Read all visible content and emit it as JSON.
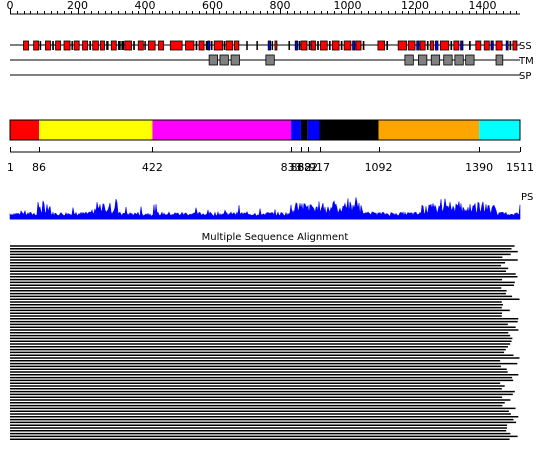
{
  "ruler": {
    "min": 0,
    "max": 1511,
    "ticks": [
      "0",
      "200",
      "400",
      "600",
      "800",
      "1000",
      "1200",
      "1400"
    ]
  },
  "tracks": {
    "ss_label": "SS",
    "tm_label": "TM",
    "sp_label": "SP",
    "ps_label": "PS"
  },
  "colors": {
    "helix": "#ff0000",
    "strand": "#0000ff",
    "coil": "#000000",
    "tm": "#808080",
    "ps": "#0000ff"
  },
  "ss_elements": [
    {
      "t": "h",
      "s": 40,
      "e": 55
    },
    {
      "t": "h",
      "s": 70,
      "e": 85
    },
    {
      "t": "c",
      "s": 88,
      "e": 92
    },
    {
      "t": "h",
      "s": 105,
      "e": 120
    },
    {
      "t": "c",
      "s": 125,
      "e": 130
    },
    {
      "t": "h",
      "s": 135,
      "e": 150
    },
    {
      "t": "h",
      "s": 160,
      "e": 178
    },
    {
      "t": "c",
      "s": 182,
      "e": 186
    },
    {
      "t": "h",
      "s": 190,
      "e": 205
    },
    {
      "t": "h",
      "s": 215,
      "e": 230
    },
    {
      "t": "c",
      "s": 235,
      "e": 240
    },
    {
      "t": "h",
      "s": 245,
      "e": 262
    },
    {
      "t": "h",
      "s": 268,
      "e": 280
    },
    {
      "t": "c",
      "s": 285,
      "e": 292
    },
    {
      "t": "h",
      "s": 300,
      "e": 315
    },
    {
      "t": "c",
      "s": 320,
      "e": 328
    },
    {
      "t": "c",
      "s": 330,
      "e": 338
    },
    {
      "t": "h",
      "s": 340,
      "e": 360
    },
    {
      "t": "c",
      "s": 365,
      "e": 370
    },
    {
      "t": "h",
      "s": 380,
      "e": 395
    },
    {
      "t": "c",
      "s": 398,
      "e": 402
    },
    {
      "t": "h",
      "s": 410,
      "e": 430
    },
    {
      "t": "h",
      "s": 440,
      "e": 455
    },
    {
      "t": "h",
      "s": 475,
      "e": 510
    },
    {
      "t": "h",
      "s": 520,
      "e": 545
    },
    {
      "t": "c",
      "s": 550,
      "e": 555
    },
    {
      "t": "h",
      "s": 560,
      "e": 575
    },
    {
      "t": "c",
      "s": 580,
      "e": 585
    },
    {
      "t": "e",
      "s": 586,
      "e": 592
    },
    {
      "t": "c",
      "s": 595,
      "e": 600
    },
    {
      "t": "h",
      "s": 605,
      "e": 630
    },
    {
      "t": "c",
      "s": 633,
      "e": 636
    },
    {
      "t": "h",
      "s": 640,
      "e": 660
    },
    {
      "t": "h",
      "s": 665,
      "e": 678
    },
    {
      "t": "c",
      "s": 700,
      "e": 704
    },
    {
      "t": "c",
      "s": 730,
      "e": 734
    },
    {
      "t": "e",
      "s": 765,
      "e": 772
    },
    {
      "t": "c",
      "s": 775,
      "e": 779
    },
    {
      "t": "h",
      "s": 785,
      "e": 790
    },
    {
      "t": "c",
      "s": 825,
      "e": 829
    },
    {
      "t": "e",
      "s": 845,
      "e": 852
    },
    {
      "t": "c",
      "s": 855,
      "e": 860
    },
    {
      "t": "h",
      "s": 862,
      "e": 880
    },
    {
      "t": "c",
      "s": 885,
      "e": 890
    },
    {
      "t": "h",
      "s": 892,
      "e": 905
    },
    {
      "t": "c",
      "s": 910,
      "e": 915
    },
    {
      "t": "h",
      "s": 920,
      "e": 940
    },
    {
      "t": "c",
      "s": 945,
      "e": 950
    },
    {
      "t": "h",
      "s": 955,
      "e": 975
    },
    {
      "t": "c",
      "s": 980,
      "e": 985
    },
    {
      "t": "h",
      "s": 990,
      "e": 1010
    },
    {
      "t": "e",
      "s": 1015,
      "e": 1022
    },
    {
      "t": "h",
      "s": 1025,
      "e": 1040
    },
    {
      "t": "c",
      "s": 1045,
      "e": 1050
    },
    {
      "t": "h",
      "s": 1090,
      "e": 1110
    },
    {
      "t": "c",
      "s": 1115,
      "e": 1120
    },
    {
      "t": "h",
      "s": 1150,
      "e": 1175
    },
    {
      "t": "h",
      "s": 1180,
      "e": 1200
    },
    {
      "t": "e",
      "s": 1205,
      "e": 1212
    },
    {
      "t": "h",
      "s": 1215,
      "e": 1230
    },
    {
      "t": "c",
      "s": 1235,
      "e": 1240
    },
    {
      "t": "h",
      "s": 1245,
      "e": 1255
    },
    {
      "t": "e",
      "s": 1260,
      "e": 1268
    },
    {
      "t": "h",
      "s": 1275,
      "e": 1300
    },
    {
      "t": "c",
      "s": 1305,
      "e": 1310
    },
    {
      "t": "h",
      "s": 1315,
      "e": 1330
    },
    {
      "t": "e",
      "s": 1335,
      "e": 1342
    },
    {
      "t": "c",
      "s": 1360,
      "e": 1365
    },
    {
      "t": "h",
      "s": 1380,
      "e": 1395
    },
    {
      "t": "h",
      "s": 1405,
      "e": 1420
    },
    {
      "t": "e",
      "s": 1425,
      "e": 1432
    },
    {
      "t": "h",
      "s": 1440,
      "e": 1458
    },
    {
      "t": "e",
      "s": 1470,
      "e": 1476
    },
    {
      "t": "c",
      "s": 1480,
      "e": 1485
    },
    {
      "t": "h",
      "s": 1490,
      "e": 1502
    }
  ],
  "tm_segments": [
    {
      "s": 590,
      "e": 615
    },
    {
      "s": 622,
      "e": 647
    },
    {
      "s": 655,
      "e": 680
    },
    {
      "s": 758,
      "e": 783
    },
    {
      "s": 1170,
      "e": 1195
    },
    {
      "s": 1210,
      "e": 1235
    },
    {
      "s": 1248,
      "e": 1273
    },
    {
      "s": 1285,
      "e": 1310
    },
    {
      "s": 1318,
      "e": 1343
    },
    {
      "s": 1350,
      "e": 1375
    },
    {
      "s": 1440,
      "e": 1460
    }
  ],
  "domains": [
    {
      "start": 1,
      "end": 86,
      "color": "#ff0000"
    },
    {
      "start": 86,
      "end": 422,
      "color": "#ffff00"
    },
    {
      "start": 422,
      "end": 833,
      "color": "#ff00ff"
    },
    {
      "start": 833,
      "end": 862,
      "color": "#0000ff"
    },
    {
      "start": 862,
      "end": 882,
      "color": "#000000"
    },
    {
      "start": 882,
      "end": 917,
      "color": "#0000ff"
    },
    {
      "start": 917,
      "end": 1092,
      "color": "#000000"
    },
    {
      "start": 1092,
      "end": 1390,
      "color": "#ffa500"
    },
    {
      "start": 1390,
      "end": 1511,
      "color": "#00ffff"
    }
  ],
  "boundary_labels": [
    "1",
    "86",
    "422",
    "833",
    "862",
    "882",
    "917",
    "1092",
    "1390",
    "1511"
  ],
  "msa": {
    "title": "Multiple Sequence Alignment",
    "row_count": 70
  }
}
